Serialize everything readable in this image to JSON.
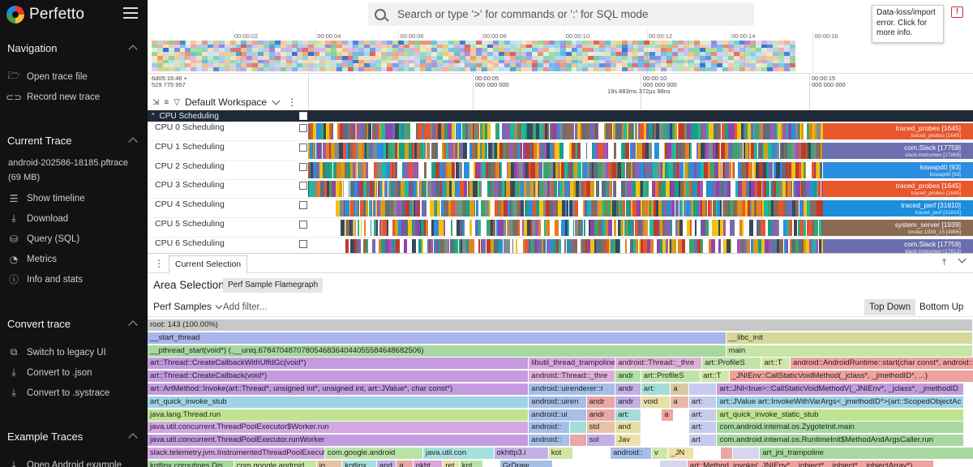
{
  "app": {
    "name": "Perfetto"
  },
  "sidebar": {
    "sections": [
      {
        "title": "Navigation",
        "items": [
          {
            "icon": "folder-open-icon",
            "label": "Open trace file"
          },
          {
            "icon": "record-icon",
            "label": "Record new trace"
          }
        ]
      },
      {
        "title": "Current Trace",
        "file": "android-202586-18185.pftrace (69 MB)",
        "items": [
          {
            "icon": "timeline-icon",
            "label": "Show timeline"
          },
          {
            "icon": "download-icon",
            "label": "Download"
          },
          {
            "icon": "database-icon",
            "label": "Query (SQL)"
          },
          {
            "icon": "metrics-icon",
            "label": "Metrics"
          },
          {
            "icon": "info-icon",
            "label": "Info and stats"
          }
        ]
      },
      {
        "title": "Convert trace",
        "items": [
          {
            "icon": "legacy-ui-icon",
            "label": "Switch to legacy UI"
          },
          {
            "icon": "download-icon",
            "label": "Convert to .json"
          },
          {
            "icon": "download-icon",
            "label": "Convert to .systrace"
          }
        ]
      },
      {
        "title": "Example Traces",
        "items": [
          {
            "icon": "download-icon",
            "label": "Open Android example"
          }
        ]
      }
    ]
  },
  "topbar": {
    "search_placeholder": "Search or type '>' for commands or ':' for SQL mode",
    "tooltip": "Data-loss/import error. Click for more info."
  },
  "overview": {
    "ticks": [
      "00:00:02",
      "00:00:04",
      "00:00:06",
      "00:00:08",
      "00:00:10",
      "00:00:12",
      "00:00:14",
      "00:00:16"
    ]
  },
  "ruler": {
    "start_label_1": "6d05:16:46 +",
    "start_label_2": "529 775 957",
    "marks": [
      {
        "l1": "00:00:05",
        "l2": "000 000 000"
      },
      {
        "l1": "00:00:10",
        "l2": "000 000 000"
      },
      {
        "l1": "00:00:15",
        "l2": "000 000 000"
      }
    ],
    "duration": "19s 883ms 372µs 98ns",
    "workspace": "Default Workspace"
  },
  "tracks": {
    "group": "CPU Scheduling",
    "rows": [
      {
        "label": "CPU 0 Scheduling",
        "end_name": "traced_probes [1645]",
        "end_sub": "traced_probes [1645]",
        "end_color": "#e8562b"
      },
      {
        "label": "CPU 1 Scheduling",
        "end_name": "com.Slack [17759]",
        "end_sub": "slack-instrumen [17869]",
        "end_color": "#6b6fae"
      },
      {
        "label": "CPU 2 Scheduling",
        "end_name": "kswapd0 [93]",
        "end_sub": "kswapd0 [93]",
        "end_color": "#2b8de0"
      },
      {
        "label": "CPU 3 Scheduling",
        "end_name": "traced_probes [1645]",
        "end_sub": "traced_probes [1645]",
        "end_color": "#e8562b"
      },
      {
        "label": "CPU 4 Scheduling",
        "end_name": "traced_perf [31810]",
        "end_sub": "traced_perf [31810]",
        "end_color": "#1c8ddc"
      },
      {
        "label": "CPU 5 Scheduling",
        "end_name": "system_server [1939]",
        "end_sub": "binder:1939_15 [4996]",
        "end_color": "#8a6a52"
      },
      {
        "label": "CPU 6 Scheduling",
        "end_name": "com.Slack [17759]",
        "end_sub": "slack-instrumen [17913]",
        "end_color": "#6b6fae"
      }
    ]
  },
  "panel": {
    "tab": "Current Selection",
    "title": "Area Selection",
    "flame_tab": "Perf Sample Flamegraph",
    "select": "Perf Samples",
    "filter_placeholder": "Add filter...",
    "top_down": "Top Down",
    "bottom_up": "Bottom Up"
  },
  "flamegraph": {
    "rows": [
      [
        {
          "t": "root: 143 (100.00%)",
          "c": "#c8c8c8",
          "w": 100
        }
      ],
      [
        {
          "t": "__start_thread",
          "c": "#a8b5ea",
          "w": 70.1
        },
        {
          "t": "__libc_init",
          "c": "#d7d79a",
          "w": 29.9
        }
      ],
      [
        {
          "t": "__pthread_start(void*) (.__uniq.67847048707805468364044055584648682506)",
          "c": "#a7d8a0",
          "w": 70.1
        },
        {
          "t": "main",
          "c": "#c6e5a6",
          "w": 29.9
        }
      ],
      [
        {
          "t": "art::Thread::CreateCallbackWithUffdGc(void*)",
          "c": "#c59be0",
          "w": 46.2
        },
        {
          "t": "libutil_thread_trampoline(voi",
          "c": "#d9a6de",
          "w": 10.5
        },
        {
          "t": "android::Thread::_thre",
          "c": "#ddb0d8",
          "w": 10.5
        },
        {
          "t": "art::ProfileS",
          "c": "#bfe3a8",
          "w": 7.2
        },
        {
          "t": "art::T",
          "c": "#d1e6a9",
          "w": 3.5
        },
        {
          "t": "android::AndroidRuntime::start(char const*, android::Vector<android",
          "c": "#efa3a0",
          "w": 29.9
        }
      ],
      [
        {
          "t": "art::Thread::CreateCallback(void*)",
          "c": "#c59be0",
          "w": 46.2
        },
        {
          "t": "android::Thread::_thre",
          "c": "#ddb0d8",
          "w": 10.5
        },
        {
          "t": "andr",
          "c": "#b0e2a2",
          "w": 3.1
        },
        {
          "t": "art::ProfileS",
          "c": "#bfe3a8",
          "w": 7.2
        },
        {
          "t": "art::T",
          "c": "#d1e6a9",
          "w": 3.5
        },
        {
          "t": "_JNIEnv::CallStaticVoidMethod(_jclass*, _jmethodID*, ...)",
          "c": "#efa3a0",
          "w": 29.9
        }
      ],
      [
        {
          "t": "art::ArtMethod::Invoke(art::Thread*, unsigned int*, unsigned int, art::JValue*, char const*)",
          "c": "#c59be0",
          "w": 46.2
        },
        {
          "t": "android::uirenderer::r",
          "c": "#a6bfe9",
          "w": 10.5
        },
        {
          "t": "andr",
          "c": "#c2b0e6",
          "w": 3.1
        },
        {
          "t": "art:",
          "c": "#a6ddd8",
          "w": 3.6
        },
        {
          "t": "a",
          "c": "#d7c7a2",
          "w": 2.2
        },
        {
          "t": "",
          "c": "#c7ccee",
          "w": 3.4
        },
        {
          "t": "art::JNI<true>::CallStaticVoidMethodV(_JNIEnv*, _jclass*, _jmethodID",
          "c": "#c59be0",
          "w": 29.9
        }
      ],
      [
        {
          "t": "art_quick_invoke_stub",
          "c": "#9fd3e6",
          "w": 46.2
        },
        {
          "t": "android::uiren",
          "c": "#a6bfe9",
          "w": 7.0
        },
        {
          "t": "andr",
          "c": "#e9a8a6",
          "w": 3.5
        },
        {
          "t": "andr",
          "c": "#c2b0e6",
          "w": 3.1
        },
        {
          "t": "void",
          "c": "#e6e0a6",
          "w": 3.6
        },
        {
          "t": "a",
          "c": "#e6b9a6",
          "w": 2.2
        },
        {
          "t": "art:",
          "c": "#c7ccee",
          "w": 3.4
        },
        {
          "t": "art::JValue art::InvokeWithVarArgs<_jmethodID*>(art::ScopedObjectAc",
          "c": "#9fd3e6",
          "w": 29.9
        }
      ],
      [
        {
          "t": "java.lang.Thread.run",
          "c": "#bfe48f",
          "w": 46.2
        },
        {
          "t": "android::ui",
          "c": "#a6bfe9",
          "w": 7.0
        },
        {
          "t": "andr",
          "c": "#e9a8a6",
          "w": 3.5
        },
        {
          "t": "art:",
          "c": "#a6ddd8",
          "w": 3.1
        },
        {
          "t": "",
          "c": "#fff",
          "w": 2.5
        },
        {
          "t": "a",
          "c": "#f0a49b",
          "w": 1.5
        },
        {
          "t": "",
          "c": "#fff",
          "w": 1.8
        },
        {
          "t": "art:",
          "c": "#c7ccee",
          "w": 3.4
        },
        {
          "t": "art_quick_invoke_static_stub",
          "c": "#bfe48f",
          "w": 29.9
        }
      ],
      [
        {
          "t": "java.util.concurrent.ThreadPoolExecutor$Worker.run",
          "c": "#d2a8e2",
          "w": 46.2
        },
        {
          "t": "android::",
          "c": "#a6bfe9",
          "w": 5.0
        },
        {
          "t": "",
          "c": "#a6ddd8",
          "w": 2.0
        },
        {
          "t": "std",
          "c": "#e6c3a6",
          "w": 3.5
        },
        {
          "t": "and",
          "c": "#e6e0a6",
          "w": 3.1
        },
        {
          "t": "",
          "c": "#fff",
          "w": 5.8
        },
        {
          "t": "art:",
          "c": "#c7ccee",
          "w": 3.4
        },
        {
          "t": "com.android.internal.os.ZygoteInit.main",
          "c": "#a7d8a0",
          "w": 29.9
        }
      ],
      [
        {
          "t": "java.util.concurrent.ThreadPoolExecutor.runWorker",
          "c": "#c59be0",
          "w": 46.2
        },
        {
          "t": "android::",
          "c": "#a6bfe9",
          "w": 5.0
        },
        {
          "t": "",
          "c": "#e9a8a6",
          "w": 2.0
        },
        {
          "t": "sol",
          "c": "#c2b0e6",
          "w": 3.5
        },
        {
          "t": "Jav",
          "c": "#efe2a8",
          "w": 3.1
        },
        {
          "t": "",
          "c": "#fff",
          "w": 5.8
        },
        {
          "t": "art",
          "c": "#c7ccee",
          "w": 3.4
        },
        {
          "t": "com.android.internal.os.RuntimeInit$MethodAndArgsCaller.run",
          "c": "#a7d8a0",
          "w": 29.9
        }
      ],
      [
        {
          "t": "slack.telemetry.jvm.InstrumentedThreadPoolExecutor$",
          "c": "#d2a8e2",
          "w": 21.5
        },
        {
          "t": "com.google.android",
          "c": "#b9e3a6",
          "w": 11.9
        },
        {
          "t": "java.util.con",
          "c": "#a6e0dc",
          "w": 8.6
        },
        {
          "t": "okhttp3.i",
          "c": "#c2b0e6",
          "w": 6.6
        },
        {
          "t": "kot",
          "c": "#d2e6a6",
          "w": 3.0
        },
        {
          "t": "",
          "c": "#fff",
          "w": 4.5
        },
        {
          "t": "android::",
          "c": "#a6bfe9",
          "w": 5.0
        },
        {
          "t": "v",
          "c": "#d1e6a9",
          "w": 2.0
        },
        {
          "t": "_JN",
          "c": "#efe2a8",
          "w": 3.1
        },
        {
          "t": "",
          "c": "#fff",
          "w": 3.2
        },
        {
          "t": "",
          "c": "#e9a8a6",
          "w": 1.5
        },
        {
          "t": "",
          "c": "#d6d6ee",
          "w": 3.3
        },
        {
          "t": "art_jni_trampoline",
          "c": "#a7d8a0",
          "w": 29.9
        }
      ],
      [
        {
          "t": "kotlinx.coroutines.Dis",
          "c": "#a6d8a0",
          "w": 10.5
        },
        {
          "t": "com.google.android",
          "c": "#c6e5a6",
          "w": 10.0
        },
        {
          "t": "io",
          "c": "#e6c3a6",
          "w": 3.1
        },
        {
          "t": "kotlinx",
          "c": "#a6e0dc",
          "w": 4.2
        },
        {
          "t": "and",
          "c": "#c2b0e6",
          "w": 2.4
        },
        {
          "t": "a",
          "c": "#e9a8a6",
          "w": 2.0
        },
        {
          "t": "okht",
          "c": "#d9a6de",
          "w": 3.6
        },
        {
          "t": "ret",
          "c": "#e6e0a6",
          "w": 2.0
        },
        {
          "t": "kot",
          "c": "#b9e3a6",
          "w": 2.9
        },
        {
          "t": "",
          "c": "#fff",
          "w": 2.0
        },
        {
          "t": "GrDraw",
          "c": "#a6bfe9",
          "w": 6.4
        },
        {
          "t": "",
          "c": "#fff",
          "w": 13.0
        },
        {
          "t": "",
          "c": "#d6d6ee",
          "w": 3.3
        },
        {
          "t": "art::Method_invoke(_JNIEnv*, _jobject*, _jobject*, _jobjectArray*)",
          "c": "#efa3a0",
          "w": 29.9
        }
      ]
    ]
  }
}
